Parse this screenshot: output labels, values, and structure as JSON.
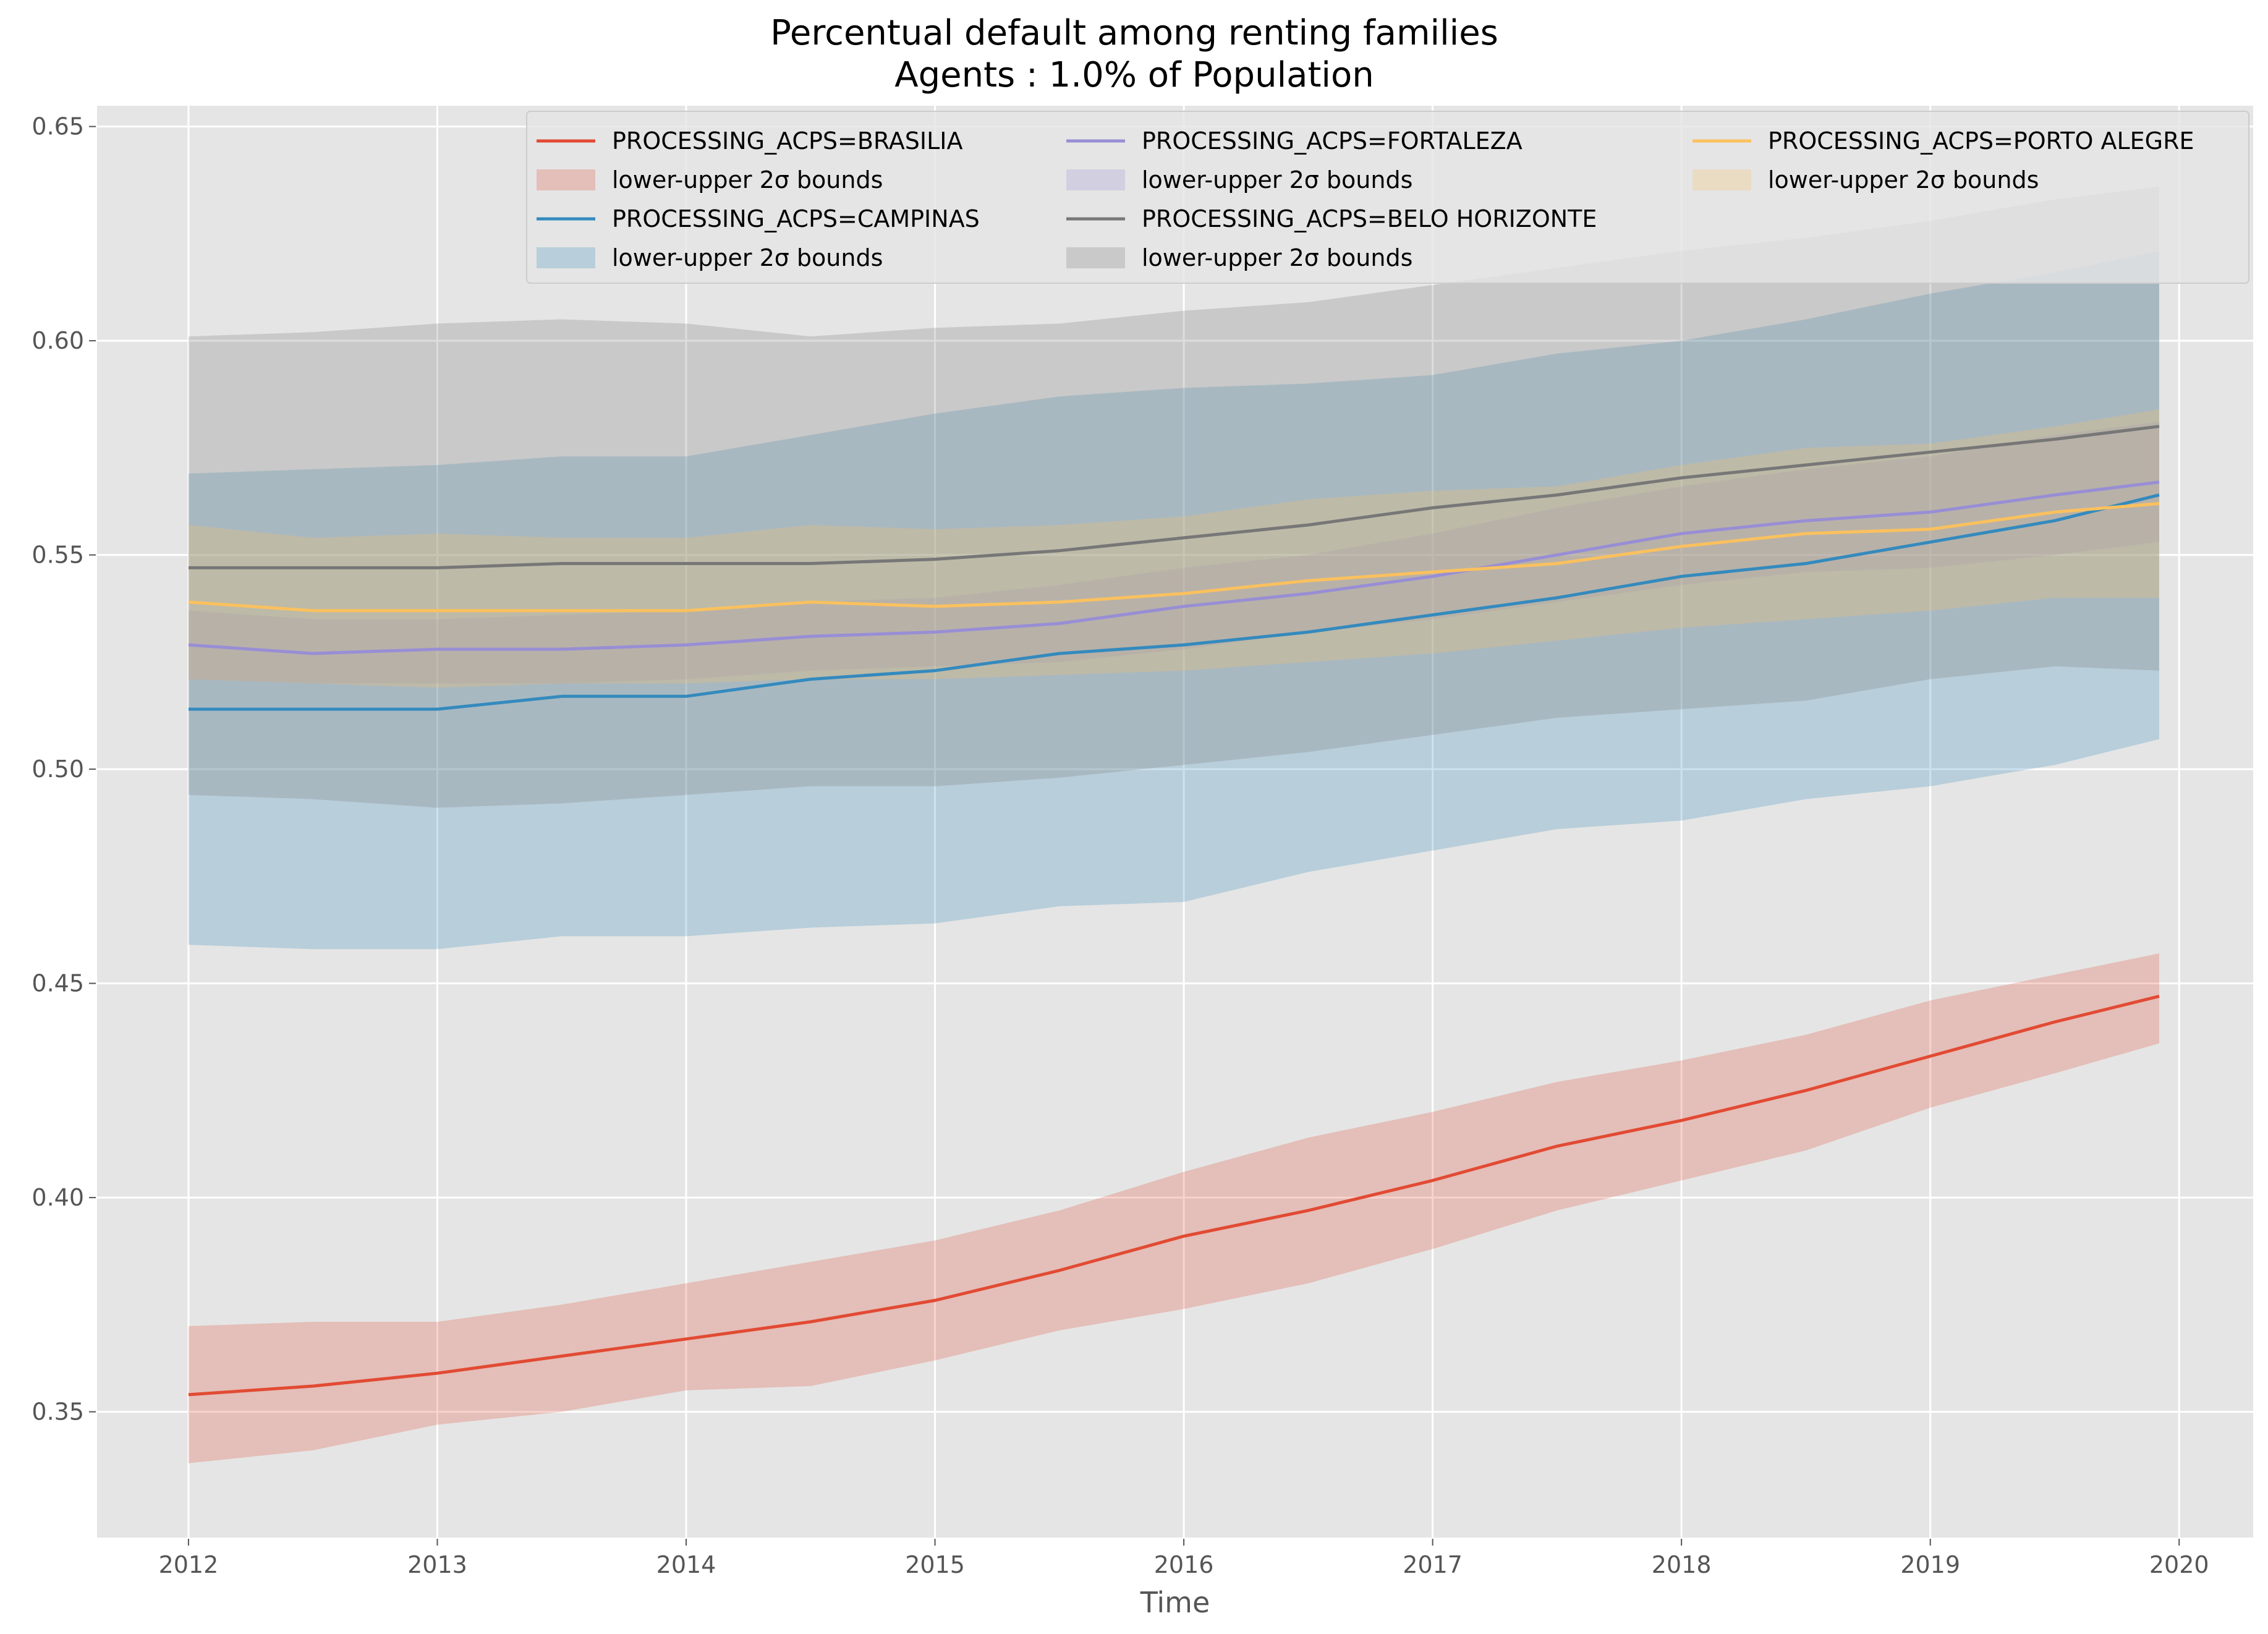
{
  "chart_data": {
    "type": "line",
    "title": "Percentual default among renting families",
    "subtitle": "Agents : 1.0% of Population",
    "xlabel": "Time",
    "ylabel": "",
    "x_ticks": [
      "2012",
      "2013",
      "2014",
      "2015",
      "2016",
      "2017",
      "2018",
      "2019",
      "2020"
    ],
    "y_ticks": [
      "0.35",
      "0.40",
      "0.45",
      "0.50",
      "0.55",
      "0.60",
      "0.65"
    ],
    "xlim": [
      2011.63,
      2020.3
    ],
    "ylim": [
      0.3205,
      0.655
    ],
    "grid": true,
    "legend_position": "top-right",
    "x": [
      2012.0,
      2012.5,
      2013.0,
      2013.5,
      2014.0,
      2014.5,
      2015.0,
      2015.5,
      2016.0,
      2016.5,
      2017.0,
      2017.5,
      2018.0,
      2018.5,
      2019.0,
      2019.5,
      2019.92
    ],
    "series": [
      {
        "name": "PROCESSING_ACPS=BRASILIA",
        "band_label": "lower-upper 2σ bounds",
        "color": "#E24A33",
        "values": [
          0.354,
          0.356,
          0.359,
          0.363,
          0.367,
          0.371,
          0.376,
          0.383,
          0.391,
          0.397,
          0.404,
          0.412,
          0.418,
          0.425,
          0.433,
          0.441,
          0.447
        ],
        "lower": [
          0.338,
          0.341,
          0.347,
          0.35,
          0.355,
          0.356,
          0.362,
          0.369,
          0.374,
          0.38,
          0.388,
          0.397,
          0.404,
          0.411,
          0.421,
          0.429,
          0.436
        ],
        "upper": [
          0.37,
          0.371,
          0.371,
          0.375,
          0.38,
          0.385,
          0.39,
          0.397,
          0.406,
          0.414,
          0.42,
          0.427,
          0.432,
          0.438,
          0.446,
          0.452,
          0.457
        ]
      },
      {
        "name": "PROCESSING_ACPS=CAMPINAS",
        "band_label": "lower-upper 2σ bounds",
        "color": "#348ABD",
        "values": [
          0.514,
          0.514,
          0.514,
          0.517,
          0.517,
          0.521,
          0.523,
          0.527,
          0.529,
          0.532,
          0.536,
          0.54,
          0.545,
          0.548,
          0.553,
          0.558,
          0.564
        ],
        "lower": [
          0.459,
          0.458,
          0.458,
          0.461,
          0.461,
          0.463,
          0.464,
          0.468,
          0.469,
          0.476,
          0.481,
          0.486,
          0.488,
          0.493,
          0.496,
          0.501,
          0.507
        ],
        "upper": [
          0.569,
          0.57,
          0.571,
          0.573,
          0.573,
          0.578,
          0.583,
          0.587,
          0.589,
          0.59,
          0.592,
          0.597,
          0.6,
          0.605,
          0.611,
          0.616,
          0.621
        ]
      },
      {
        "name": "PROCESSING_ACPS=FORTALEZA",
        "band_label": "lower-upper 2σ bounds",
        "color": "#988ED5",
        "values": [
          0.529,
          0.527,
          0.528,
          0.528,
          0.529,
          0.531,
          0.532,
          0.534,
          0.538,
          0.541,
          0.545,
          0.55,
          0.555,
          0.558,
          0.56,
          0.564,
          0.567
        ],
        "lower": [
          0.521,
          0.52,
          0.52,
          0.52,
          0.521,
          0.523,
          0.524,
          0.525,
          0.528,
          0.532,
          0.535,
          0.539,
          0.543,
          0.546,
          0.547,
          0.55,
          0.553
        ],
        "upper": [
          0.537,
          0.535,
          0.535,
          0.536,
          0.537,
          0.539,
          0.54,
          0.543,
          0.547,
          0.55,
          0.555,
          0.561,
          0.566,
          0.57,
          0.573,
          0.578,
          0.581
        ]
      },
      {
        "name": "PROCESSING_ACPS=BELO HORIZONTE",
        "band_label": "lower-upper 2σ bounds",
        "color": "#777777",
        "values": [
          0.547,
          0.547,
          0.547,
          0.548,
          0.548,
          0.548,
          0.549,
          0.551,
          0.554,
          0.557,
          0.561,
          0.564,
          0.568,
          0.571,
          0.574,
          0.577,
          0.58
        ],
        "lower": [
          0.494,
          0.493,
          0.491,
          0.492,
          0.494,
          0.496,
          0.496,
          0.498,
          0.501,
          0.504,
          0.508,
          0.512,
          0.514,
          0.516,
          0.521,
          0.524,
          0.523
        ],
        "upper": [
          0.601,
          0.602,
          0.604,
          0.605,
          0.604,
          0.601,
          0.603,
          0.604,
          0.607,
          0.609,
          0.613,
          0.617,
          0.621,
          0.624,
          0.628,
          0.633,
          0.636
        ]
      },
      {
        "name": "PROCESSING_ACPS=PORTO ALEGRE",
        "band_label": "lower-upper 2σ bounds",
        "color": "#FBC15E",
        "values": [
          0.539,
          0.537,
          0.537,
          0.537,
          0.537,
          0.539,
          0.538,
          0.539,
          0.541,
          0.544,
          0.546,
          0.548,
          0.552,
          0.555,
          0.556,
          0.56,
          0.562
        ],
        "lower": [
          0.521,
          0.52,
          0.519,
          0.52,
          0.52,
          0.521,
          0.521,
          0.522,
          0.523,
          0.525,
          0.527,
          0.53,
          0.533,
          0.535,
          0.537,
          0.54,
          0.54
        ],
        "upper": [
          0.557,
          0.554,
          0.555,
          0.554,
          0.554,
          0.557,
          0.556,
          0.557,
          0.559,
          0.563,
          0.565,
          0.566,
          0.571,
          0.575,
          0.576,
          0.58,
          0.584
        ]
      }
    ],
    "band_opacity": 0.25,
    "colors": {
      "plot_background": "#E5E5E5",
      "grid": "#FFFFFF",
      "tick_text": "#555555"
    }
  }
}
